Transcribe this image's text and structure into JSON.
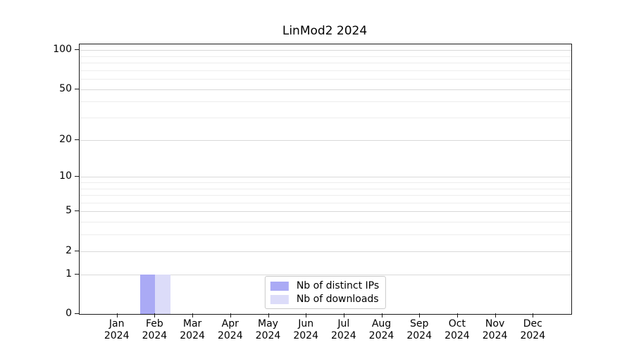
{
  "chart_data": {
    "type": "bar",
    "title": "LinMod2 2024",
    "x_months": [
      "Jan",
      "Feb",
      "Mar",
      "Apr",
      "May",
      "Jun",
      "Jul",
      "Aug",
      "Sep",
      "Oct",
      "Nov",
      "Dec"
    ],
    "x_year_label": "2024",
    "series": [
      {
        "name": "Nb of distinct IPs",
        "color": "#aaaaf5",
        "values": [
          0,
          1,
          0,
          0,
          0,
          0,
          0,
          0,
          0,
          0,
          0,
          0
        ]
      },
      {
        "name": "Nb of downloads",
        "color": "#dcdcf9",
        "values": [
          0,
          1,
          0,
          0,
          0,
          0,
          0,
          0,
          0,
          0,
          0,
          0
        ]
      }
    ],
    "y_scale": "log1p",
    "ylim": [
      0,
      110.5
    ],
    "y_major_ticks": [
      0,
      1,
      2,
      5,
      10,
      20,
      50,
      100
    ],
    "y_minor_gridlines": [
      3,
      4,
      6,
      7,
      8,
      9,
      30,
      40,
      60,
      70,
      80,
      90
    ],
    "grid": true,
    "legend_position": "lower center",
    "colors": {
      "spine": "#1a1a1a",
      "major_grid": "#d9d9d9",
      "minor_grid": "#ededed"
    }
  }
}
